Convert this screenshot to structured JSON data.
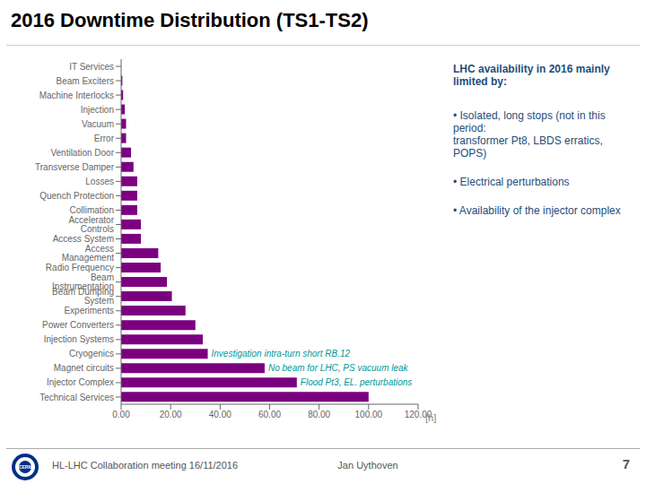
{
  "chart_data": {
    "type": "bar",
    "orientation": "horizontal",
    "title": "2016 Downtime Distribution (TS1-TS2)",
    "xlabel": "[h]",
    "categories": [
      "IT Services",
      "Beam Exciters",
      "Machine Interlocks",
      "Injection",
      "Vacuum",
      "Error",
      "Ventilation Door",
      "Transverse Damper",
      "Losses",
      "Quench Protection",
      "Collimation",
      "Accelerator Controls",
      "Access System",
      "Access Management",
      "Radio Frequency",
      "Beam Instrumentation",
      "Beam Dumping System",
      "Experiments",
      "Power Converters",
      "Injection Systems",
      "Cryogenics",
      "Magnet circuits",
      "Injector Complex",
      "Technical Services"
    ],
    "values": [
      0.0,
      0.5,
      0.8,
      1.5,
      2.0,
      2.0,
      4.0,
      5.0,
      6.5,
      6.5,
      6.5,
      8.0,
      8.0,
      15.0,
      16.0,
      18.5,
      20.5,
      26.0,
      30.0,
      33.0,
      35.0,
      58.0,
      71.0,
      100.0
    ],
    "color": "#7B0080",
    "xlim": [
      0,
      120
    ],
    "xticks": [
      {
        "value": 0,
        "label": "0.00"
      },
      {
        "value": 20,
        "label": "20.00"
      },
      {
        "value": 40,
        "label": "40.00"
      },
      {
        "value": 60,
        "label": "60.00"
      },
      {
        "value": 80,
        "label": "80.00"
      },
      {
        "value": 100,
        "label": "100.00"
      },
      {
        "value": 120,
        "label": "120.00"
      }
    ],
    "grid": false,
    "annotations": [
      {
        "text": "Investigation intra-turn short RB.12",
        "category": "Cryogenics",
        "color": "#009999"
      },
      {
        "text": "No beam for LHC, PS vacuum leak",
        "category": "Magnet circuits",
        "color": "#009999"
      },
      {
        "text": "Flood Pt3, EL. perturbations",
        "category": "Injector Complex",
        "color": "#009999"
      }
    ],
    "textbox": {
      "title": "LHC availability in 2016 mainly limited by:",
      "bullets": [
        "•  Isolated, long stops (not in this period:\ntransformer Pt8, LBDS erratics, POPS)",
        "•  Electrical perturbations",
        "•  Availability of the injector complex"
      ]
    },
    "footer": {
      "left": "HL-LHC Collaboration meeting 16/11/2016",
      "center": "Jan Uythoven",
      "right": "7"
    },
    "logo_text": "CERN"
  }
}
